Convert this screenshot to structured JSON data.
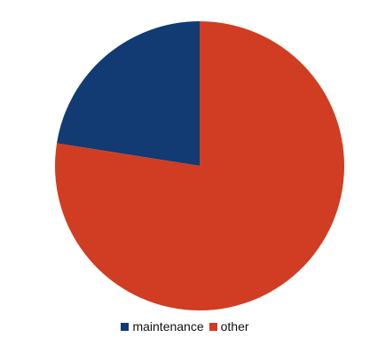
{
  "chart_data": {
    "type": "pie",
    "title": "",
    "series": [
      {
        "name": "maintenance",
        "value": 22.5,
        "color": "#123a73"
      },
      {
        "name": "other",
        "value": 77.5,
        "color": "#d03d22"
      }
    ],
    "start_angle_deg": 0,
    "direction": "counterclockwise",
    "legend": {
      "position": "bottom-center"
    },
    "background": "#ffffff"
  }
}
